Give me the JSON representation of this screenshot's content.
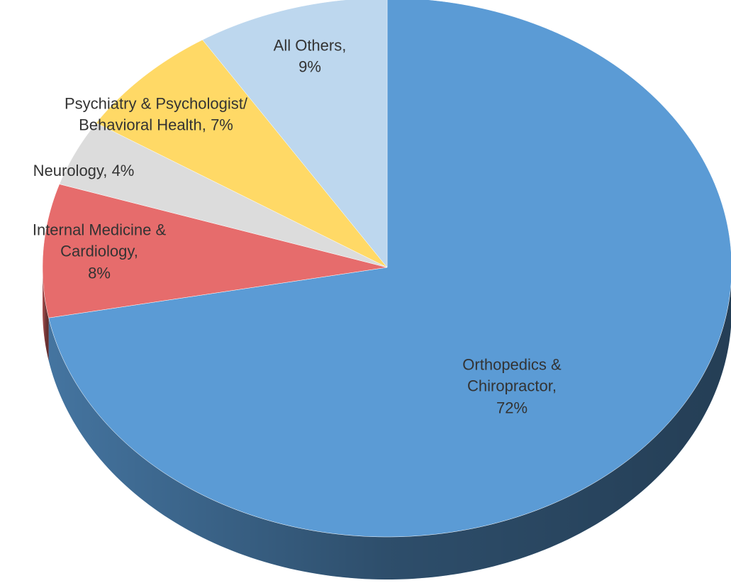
{
  "chart_data": {
    "type": "pie",
    "categories": [
      "Orthopedics & Chiropractor,",
      "Internal Medicine & Cardiology,",
      "Neurology,",
      "Psychiatry & Psychologist/ Behavioral Health,",
      "All Others,"
    ],
    "values": [
      72,
      8,
      4,
      7,
      9
    ],
    "value_labels": [
      "72%",
      "8%",
      "4%",
      "7%",
      "9%"
    ],
    "colors": [
      "#5b9bd5",
      "#e66c6c",
      "#dcdcdc",
      "#ffd966",
      "#bdd7ee"
    ],
    "three_d": true
  }
}
